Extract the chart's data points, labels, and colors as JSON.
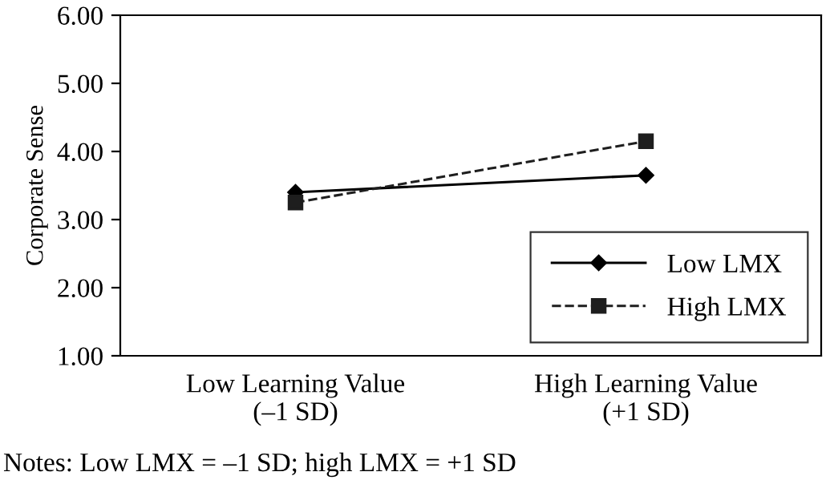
{
  "chart_data": {
    "type": "line",
    "ylabel": "Corporate Sense",
    "categories": [
      "Low Learning Value\n(–1 SD)",
      "High Learning Value\n(+1 SD)"
    ],
    "series": [
      {
        "name": "Low LMX",
        "color": "#000000",
        "values": [
          3.4,
          3.65
        ],
        "marker": "diamond",
        "line_style": "solid"
      },
      {
        "name": "High LMX",
        "color": "#1e1e1e",
        "values": [
          3.25,
          4.15
        ],
        "marker": "square",
        "line_style": "dashed"
      }
    ],
    "ylim": [
      1,
      6
    ],
    "yticks": [
      {
        "value": 1,
        "label": "1.00"
      },
      {
        "value": 2,
        "label": "2.00"
      },
      {
        "value": 3,
        "label": "3.00"
      },
      {
        "value": 4,
        "label": "4.00"
      },
      {
        "value": 5,
        "label": "5.00"
      },
      {
        "value": 6,
        "label": "6.00"
      }
    ],
    "grid": false,
    "legend": "bottom right",
    "annotations": [
      "Notes: Low LMX = –1 SD; high LMX = +1 SD"
    ]
  }
}
